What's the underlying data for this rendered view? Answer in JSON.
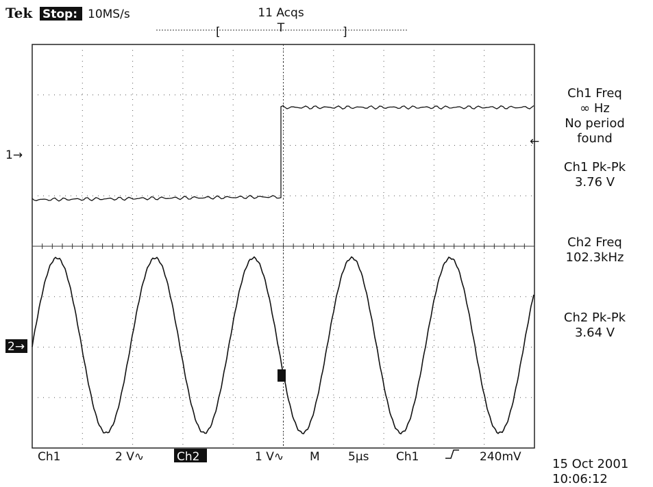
{
  "header": {
    "brand": "Tek",
    "status": "Stop:",
    "rate": "10MS/s",
    "acquisitions": "11 Acqs",
    "trigger_marker": "T"
  },
  "markers": {
    "ch1": "1→",
    "ch2": "2→"
  },
  "measurements": [
    {
      "lines": [
        "Ch1 Freq",
        "∞ Hz",
        "No period",
        "found"
      ]
    },
    {
      "lines": [
        "Ch1 Pk-Pk",
        "3.76 V"
      ]
    },
    {
      "lines": [
        "Ch2 Freq",
        "102.3kHz"
      ]
    },
    {
      "lines": [
        "Ch2 Pk-Pk",
        "3.64 V"
      ]
    }
  ],
  "footer": {
    "ch1": "Ch1",
    "ch1_scale": "2 V∿",
    "ch2": "Ch2",
    "ch2_scale": "1 V∿",
    "time_label": "M",
    "timebase": "5µs",
    "trigger_source": "Ch1",
    "trigger_level": "240mV"
  },
  "timestamp": {
    "date": "15 Oct 2001",
    "time": "10:06:12"
  }
}
